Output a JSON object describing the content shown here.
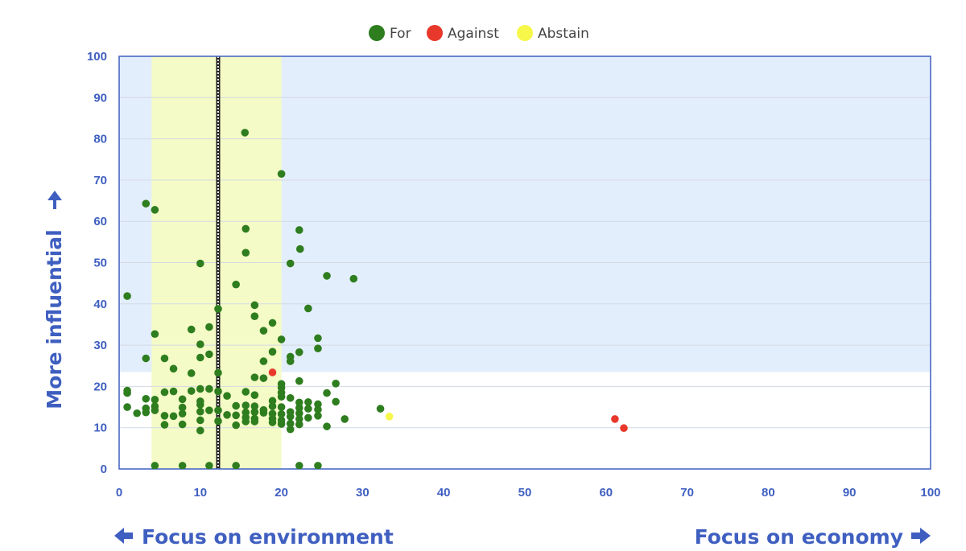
{
  "chart_data": {
    "type": "scatter",
    "xlabel_left": "Focus on environment",
    "xlabel_right": "Focus on economy",
    "ylabel": "More influential",
    "xlim": [
      0,
      100
    ],
    "ylim": [
      0,
      100
    ],
    "xticks": [
      "0",
      "10",
      "20",
      "30",
      "40",
      "50",
      "60",
      "70",
      "80",
      "90",
      "100"
    ],
    "yticks": [
      "0",
      "10",
      "20",
      "30",
      "40",
      "50",
      "60",
      "70",
      "80",
      "90",
      "100"
    ],
    "grid": true,
    "legend_position": "top-center",
    "regions": [
      {
        "kind": "rect",
        "x": [
          0,
          100
        ],
        "y": [
          23.5,
          100
        ],
        "color": "#e3eefc"
      },
      {
        "kind": "band",
        "x": [
          4,
          20
        ],
        "y": [
          0,
          100
        ],
        "color": "#f4fbc6",
        "top_color": "#edf7cd"
      },
      {
        "kind": "vline",
        "x": 12.2,
        "color": "#222222"
      }
    ],
    "colors": {
      "For": "#2e7d1f",
      "Against": "#e8382b",
      "Abstain": "#f7f74a",
      "axis": "#3f5fc0",
      "grid": "#d3d9e3"
    },
    "series": [
      {
        "name": "For",
        "points": [
          [
            15.5,
            81.5
          ],
          [
            20,
            71.5
          ],
          [
            3.3,
            64.3
          ],
          [
            4.4,
            62.8
          ],
          [
            15.6,
            58.2
          ],
          [
            22.2,
            57.9
          ],
          [
            22.3,
            53.3
          ],
          [
            15.6,
            52.4
          ],
          [
            10,
            49.8
          ],
          [
            21.1,
            49.8
          ],
          [
            25.6,
            46.8
          ],
          [
            28.9,
            46.1
          ],
          [
            14.4,
            44.7
          ],
          [
            1,
            41.9
          ],
          [
            16.7,
            39.7
          ],
          [
            12.2,
            38.8
          ],
          [
            23.3,
            38.9
          ],
          [
            16.7,
            37
          ],
          [
            18.9,
            35.4
          ],
          [
            11.1,
            34.4
          ],
          [
            8.9,
            33.8
          ],
          [
            17.8,
            33.5
          ],
          [
            4.4,
            32.7
          ],
          [
            20,
            31.4
          ],
          [
            24.5,
            31.7
          ],
          [
            10,
            30.2
          ],
          [
            24.5,
            29.2
          ],
          [
            18.9,
            28.4
          ],
          [
            22.2,
            28.3
          ],
          [
            11.1,
            27.8
          ],
          [
            3.3,
            26.8
          ],
          [
            5.6,
            26.8
          ],
          [
            10,
            27
          ],
          [
            21.1,
            27.2
          ],
          [
            17.8,
            26.1
          ],
          [
            21.1,
            26.1
          ],
          [
            6.7,
            24.3
          ],
          [
            8.9,
            23.2
          ],
          [
            12.2,
            23.3
          ],
          [
            16.7,
            22.2
          ],
          [
            17.8,
            22
          ],
          [
            22.2,
            21.3
          ],
          [
            20,
            20.6
          ],
          [
            26.7,
            20.7
          ],
          [
            1,
            19
          ],
          [
            1,
            18.4
          ],
          [
            10,
            19.4
          ],
          [
            11.1,
            19.4
          ],
          [
            12.2,
            18.8
          ],
          [
            15.6,
            18.7
          ],
          [
            20,
            19.7
          ],
          [
            20,
            18.5
          ],
          [
            5.6,
            18.6
          ],
          [
            6.7,
            18.8
          ],
          [
            8.9,
            18.9
          ],
          [
            25.6,
            18.4
          ],
          [
            13.3,
            17.7
          ],
          [
            16.7,
            17.9
          ],
          [
            18.9,
            16.5
          ],
          [
            20,
            17.5
          ],
          [
            21.1,
            17.2
          ],
          [
            3.3,
            17
          ],
          [
            4.4,
            16.8
          ],
          [
            7.8,
            16.9
          ],
          [
            10,
            16.4
          ],
          [
            22.2,
            16.1
          ],
          [
            23.3,
            16.2
          ],
          [
            24.5,
            15.7
          ],
          [
            26.7,
            16.3
          ],
          [
            1,
            15
          ],
          [
            3.3,
            14.7
          ],
          [
            4.4,
            15.2
          ],
          [
            7.8,
            14.9
          ],
          [
            10,
            15.6
          ],
          [
            11.1,
            14.2
          ],
          [
            12.2,
            14.2
          ],
          [
            14.4,
            15.3
          ],
          [
            15.6,
            15.4
          ],
          [
            16.7,
            15.2
          ],
          [
            17.8,
            14.3
          ],
          [
            18.9,
            15.2
          ],
          [
            20,
            15
          ],
          [
            21.1,
            13.8
          ],
          [
            22.2,
            14.8
          ],
          [
            23.3,
            14.6
          ],
          [
            24.5,
            14.4
          ],
          [
            32.2,
            14.6
          ],
          [
            2.2,
            13.5
          ],
          [
            3.3,
            13.7
          ],
          [
            4.4,
            14.2
          ],
          [
            5.6,
            12.9
          ],
          [
            6.7,
            12.8
          ],
          [
            7.8,
            13.4
          ],
          [
            10,
            13.9
          ],
          [
            13.3,
            13.1
          ],
          [
            14.4,
            13
          ],
          [
            15.6,
            13.7
          ],
          [
            16.7,
            13.8
          ],
          [
            17.8,
            13.6
          ],
          [
            18.9,
            13.4
          ],
          [
            20,
            13.3
          ],
          [
            21.1,
            12.7
          ],
          [
            22.2,
            13.5
          ],
          [
            23.3,
            12.4
          ],
          [
            24.5,
            12.9
          ],
          [
            27.8,
            12.1
          ],
          [
            10,
            11.8
          ],
          [
            12.2,
            11.6
          ],
          [
            15.6,
            12.5
          ],
          [
            16.7,
            12.2
          ],
          [
            18.9,
            12.2
          ],
          [
            20,
            11.8
          ],
          [
            22.2,
            12.1
          ],
          [
            5.6,
            10.7
          ],
          [
            7.8,
            10.8
          ],
          [
            14.4,
            10.6
          ],
          [
            15.6,
            11.5
          ],
          [
            16.7,
            11.5
          ],
          [
            18.9,
            11.3
          ],
          [
            20,
            10.9
          ],
          [
            21.1,
            11
          ],
          [
            22.2,
            10.8
          ],
          [
            25.6,
            10.3
          ],
          [
            10,
            9.3
          ],
          [
            21.1,
            9.6
          ],
          [
            4.4,
            0.8
          ],
          [
            7.8,
            0.8
          ],
          [
            11.1,
            0.8
          ],
          [
            14.4,
            0.8
          ],
          [
            22.2,
            0.8
          ],
          [
            24.5,
            0.8
          ]
        ]
      },
      {
        "name": "Against",
        "points": [
          [
            18.9,
            23.4
          ],
          [
            61.1,
            12.1
          ],
          [
            62.2,
            9.9
          ]
        ]
      },
      {
        "name": "Abstain",
        "points": [
          [
            33.3,
            12.7
          ]
        ]
      }
    ]
  }
}
